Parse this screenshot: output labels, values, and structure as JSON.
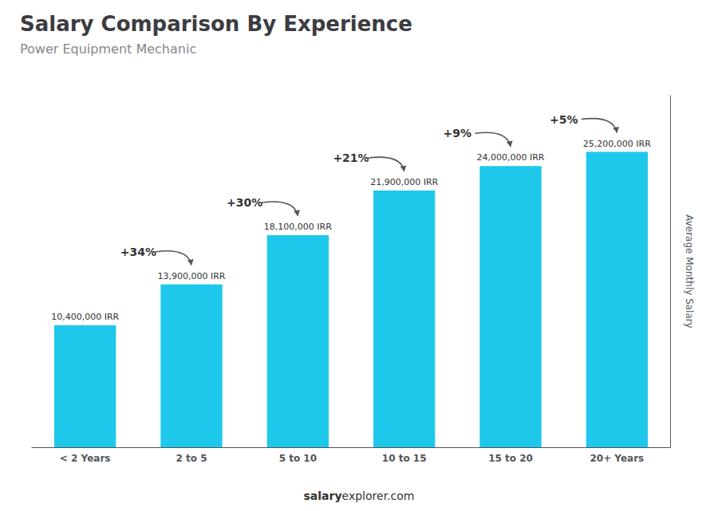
{
  "chart_data": {
    "type": "bar",
    "title": "Salary Comparison By Experience",
    "subtitle": "Power Equipment Mechanic",
    "categories": [
      "< 2 Years",
      "2 to 5",
      "5 to 10",
      "10 to 15",
      "15 to 20",
      "20+ Years"
    ],
    "values": [
      10400000,
      13900000,
      18100000,
      21900000,
      24000000,
      25200000
    ],
    "value_labels": [
      "10,400,000 IRR",
      "13,900,000 IRR",
      "18,100,000 IRR",
      "21,900,000 IRR",
      "24,000,000 IRR",
      "25,200,000 IRR"
    ],
    "data_labels": true,
    "color": "#1ec8ea",
    "ylabel": "Average Monthly Salary",
    "ylim": [
      0,
      30000000
    ],
    "tick_labels": "x",
    "grid": false,
    "annotations": [
      {
        "text": "+34%",
        "from": "< 2 Years",
        "to": "2 to 5"
      },
      {
        "text": "+30%",
        "from": "2 to 5",
        "to": "5 to 10"
      },
      {
        "text": "+21%",
        "from": "5 to 10",
        "to": "10 to 15"
      },
      {
        "text": "+9%",
        "from": "10 to 15",
        "to": "15 to 20"
      },
      {
        "text": "+5%",
        "from": "15 to 20",
        "to": "20+ Years"
      }
    ],
    "footer": [
      "salary",
      "explorer.com"
    ]
  }
}
